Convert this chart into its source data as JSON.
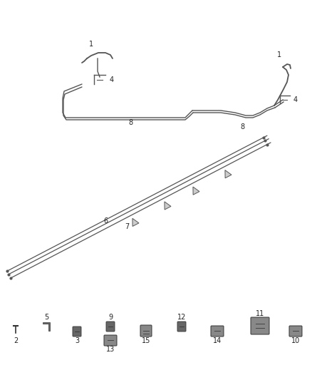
{
  "bg_color": "#ffffff",
  "fig_width": 4.38,
  "fig_height": 5.33,
  "dpi": 100,
  "line_color": "#555555",
  "dark_color": "#333333"
}
